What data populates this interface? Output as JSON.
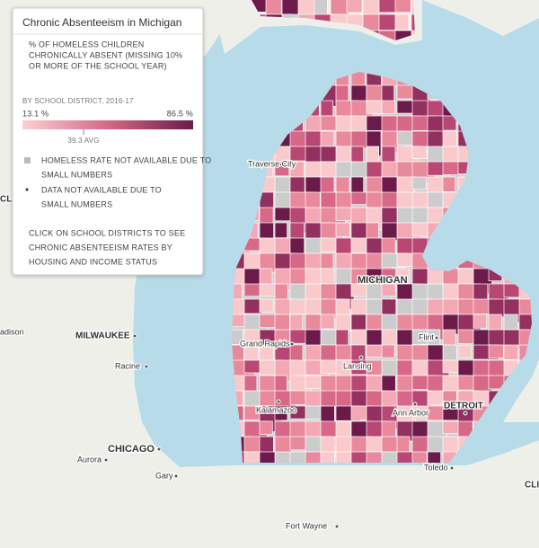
{
  "legend": {
    "title": "Chronic Absenteeism in Michigan",
    "subtitle": [
      "% OF HOMELESS CHILDREN",
      "CHRONICALLY ABSENT (MISSING 10%",
      "OR MORE OF THE SCHOOL YEAR)"
    ],
    "period": "BY SCHOOL DISTRICT, 2016-17",
    "min_label": "13.1 %",
    "max_label": "86.5 %",
    "avg_label": "39.3 AVG",
    "notes": [
      [
        "HOMELESS RATE NOT AVAILABLE DUE TO",
        "SMALL NUMBERS"
      ],
      [
        "DATA NOT AVAILABLE DUE TO",
        "SMALL NUMBERS"
      ]
    ],
    "click_hint": [
      "CLICK ON SCHOOL DISTRICTS TO SEE",
      "CHRONIC ABSENTEEISM RATES BY",
      "HOUSING AND INCOME STATUS"
    ]
  },
  "map": {
    "state_label": "MICHIGAN",
    "cities": [
      "Traverse City",
      "Grand Rapids",
      "Flint",
      "Lansing",
      "Kalamazoo",
      "Ann Arbor",
      "DETROIT",
      "MILWAUKEE",
      "Racine",
      "CHICAGO",
      "Aurora",
      "Gary",
      "Toledo",
      "Fort Wayne",
      "adison",
      "CL",
      "CLI"
    ]
  }
}
